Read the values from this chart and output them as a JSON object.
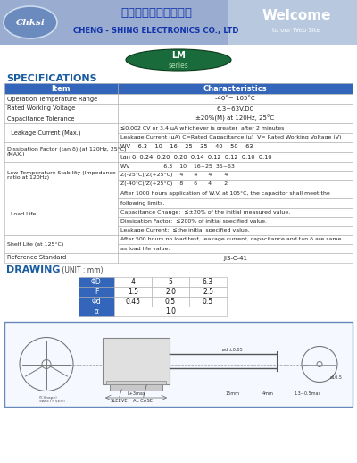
{
  "header_bg": "#9AACCF",
  "header_right_bg": "#B8C8DF",
  "logo_bg": "#6B8BBF",
  "cn_title": "正新電子股份有限公司",
  "en_title": "CHENG - SHING ELECTRONICS CO., LTD",
  "welcome1": "Welcome",
  "welcome2": "to our Web Site",
  "series_bg": "#1A6B3C",
  "series_text1": "LM",
  "series_text2": "series",
  "specs_title": "SPECIFICATIONS",
  "specs_color": "#1A5CA0",
  "th_bg": "#3366BB",
  "th_fg": "#FFFFFF",
  "td_border": "#AAAAAA",
  "drawing_title": "DRAWING",
  "drawing_unit": " (UNIT : mm)",
  "draw_th_bg": "#3366BB",
  "draw_th_fg": "#FFFFFF",
  "box_border": "#6688BB",
  "box_bg": "#F5F8FF",
  "bg": "#FFFFFF"
}
